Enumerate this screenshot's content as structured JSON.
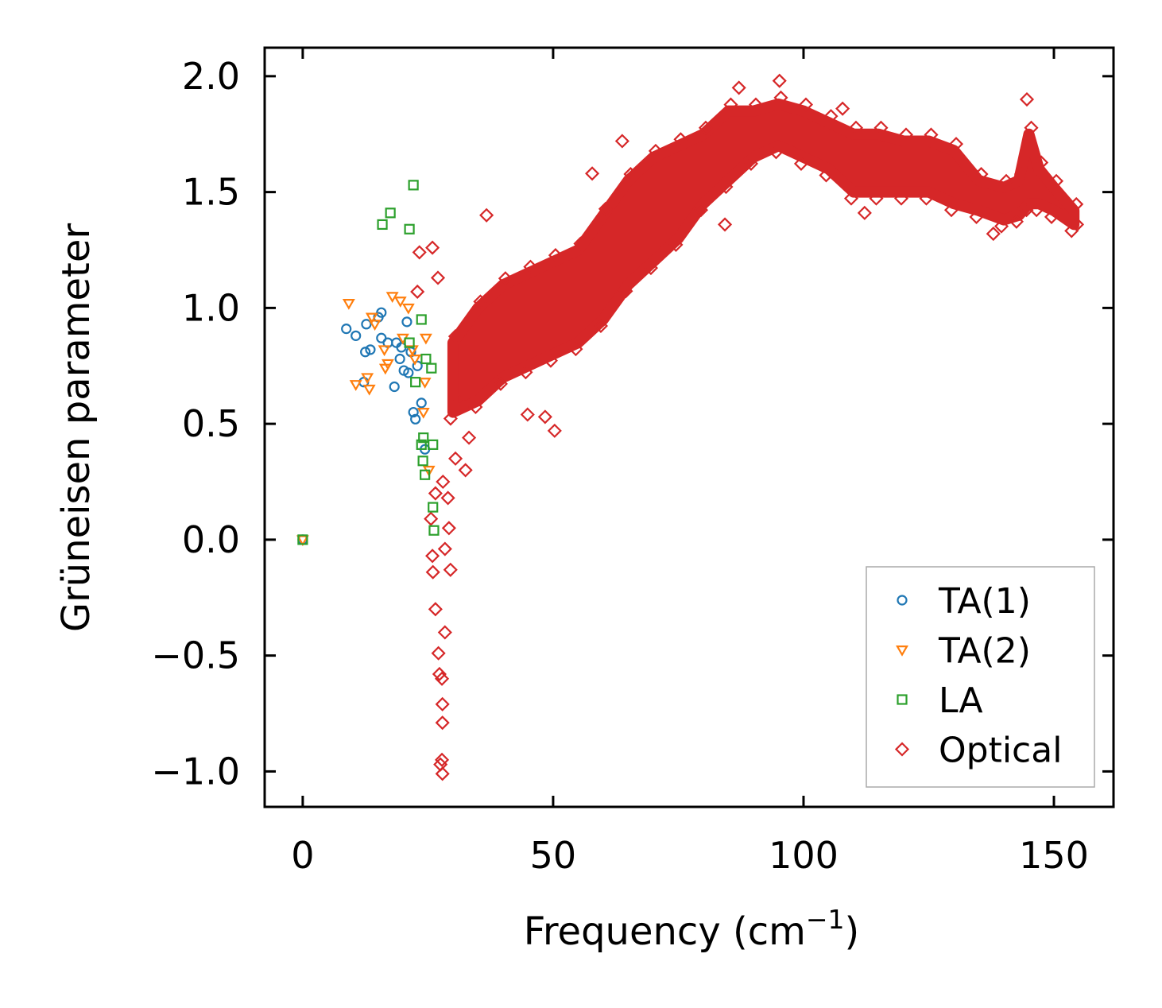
{
  "chart_data": {
    "type": "scatter",
    "xlabel": "Frequency (cm",
    "xlabel_sup": "−1",
    "xlabel_end": ")",
    "ylabel": "Grüneisen parameter",
    "xlim": [
      -7.6,
      161.9
    ],
    "ylim": [
      -1.153,
      2.123
    ],
    "xticks": [
      0,
      50,
      100,
      150
    ],
    "xtick_labels": [
      "0",
      "50",
      "100",
      "150"
    ],
    "yticks": [
      -1.0,
      -0.5,
      0.0,
      0.5,
      1.0,
      1.5,
      2.0
    ],
    "ytick_labels": [
      "−1.0",
      "−0.5",
      "0.0",
      "0.5",
      "1.0",
      "1.5",
      "2.0"
    ],
    "grid": false,
    "legend_position": "lower-right",
    "series": [
      {
        "name": "TA(1)",
        "marker": "circle",
        "color": "#1f77b4",
        "x": [
          0,
          8.7,
          10.6,
          12.7,
          13.5,
          12.5,
          12.2,
          15.7,
          15.1,
          15.7,
          17.0,
          18.7,
          18.3,
          19.4,
          19.7,
          20.8,
          20.2,
          21.1,
          21.6,
          22.1,
          22.5,
          22.9,
          23.7,
          24.4
        ],
        "y": [
          0,
          0.91,
          0.88,
          0.93,
          0.82,
          0.81,
          0.68,
          0.98,
          0.96,
          0.87,
          0.85,
          0.85,
          0.66,
          0.78,
          0.83,
          0.94,
          0.73,
          0.72,
          0.81,
          0.55,
          0.52,
          0.75,
          0.59,
          0.39
        ]
      },
      {
        "name": "TA(2)",
        "marker": "triangle-down",
        "color": "#ff7f0e",
        "x": [
          0,
          9.2,
          10.6,
          12.9,
          13.3,
          13.8,
          14.4,
          16.3,
          16.5,
          17.0,
          17.9,
          19.5,
          21.1,
          20.0,
          21.9,
          22.4,
          24.6,
          24.4,
          25.2,
          24.1
        ],
        "y": [
          0,
          1.02,
          0.67,
          0.7,
          0.65,
          0.96,
          0.93,
          0.82,
          0.74,
          0.76,
          1.05,
          1.03,
          1.0,
          0.87,
          0.82,
          0.78,
          0.87,
          0.68,
          0.3,
          0.55
        ]
      },
      {
        "name": "LA",
        "marker": "square",
        "color": "#2ca02c",
        "x": [
          0,
          22.1,
          17.5,
          15.9,
          21.3,
          23.7,
          21.3,
          22.5,
          24.6,
          25.7,
          24.1,
          23.7,
          26.0,
          24.4,
          26.0,
          26.2,
          24.0
        ],
        "y": [
          0,
          1.53,
          1.41,
          1.36,
          1.34,
          0.95,
          0.85,
          0.68,
          0.78,
          0.74,
          0.44,
          0.41,
          0.41,
          0.28,
          0.14,
          0.04,
          0.34
        ]
      },
      {
        "name": "Optical",
        "marker": "diamond",
        "color": "#d62728",
        "x": [
          27.9,
          27.8,
          27.5,
          27.9,
          27.9,
          28.4,
          26.5,
          27.1,
          27.3,
          27.8,
          29.5,
          26.0,
          28.4,
          25.9,
          25.6,
          29.2,
          23.3,
          25.9,
          22.9,
          27.0,
          36.7,
          63.8,
          44.9,
          48.4,
          50.3,
          95.2,
          87.1,
          144.6,
          112.2,
          137.9,
          84.3,
          57.8,
          107.8,
          32.5,
          33.2,
          154.6,
          26.5,
          28.0,
          29.0,
          30.5,
          31.0
        ],
        "y": [
          -1.01,
          -0.95,
          -0.97,
          -0.79,
          -0.71,
          -0.4,
          -0.3,
          -0.49,
          -0.58,
          -0.6,
          -0.13,
          -0.14,
          -0.04,
          -0.07,
          0.09,
          0.05,
          1.24,
          1.26,
          1.07,
          1.13,
          1.4,
          1.72,
          0.54,
          0.53,
          0.47,
          1.98,
          1.95,
          1.9,
          1.41,
          1.32,
          1.36,
          1.58,
          1.86,
          0.3,
          0.44,
          1.36,
          0.2,
          0.25,
          0.18,
          0.35,
          0.6
        ],
        "dense_band": {
          "x": [
            30,
            35,
            40,
            45,
            50,
            55,
            60,
            65,
            70,
            75,
            80,
            85,
            90,
            95,
            100,
            105,
            110,
            115,
            120,
            125,
            130,
            135,
            140,
            143,
            145,
            147,
            150,
            154
          ],
          "low": [
            0.55,
            0.6,
            0.7,
            0.75,
            0.8,
            0.85,
            0.95,
            1.1,
            1.2,
            1.3,
            1.45,
            1.55,
            1.65,
            1.7,
            1.65,
            1.6,
            1.5,
            1.5,
            1.5,
            1.5,
            1.45,
            1.42,
            1.38,
            1.4,
            1.45,
            1.45,
            1.42,
            1.36
          ],
          "high": [
            0.85,
            1.0,
            1.1,
            1.15,
            1.2,
            1.25,
            1.4,
            1.55,
            1.65,
            1.7,
            1.75,
            1.85,
            1.85,
            1.88,
            1.85,
            1.8,
            1.75,
            1.75,
            1.72,
            1.72,
            1.68,
            1.55,
            1.52,
            1.55,
            1.75,
            1.6,
            1.52,
            1.42
          ]
        }
      }
    ]
  }
}
